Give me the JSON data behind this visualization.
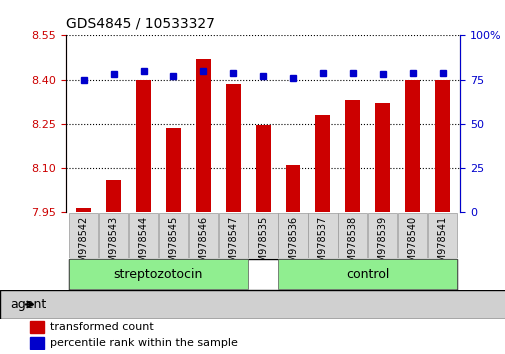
{
  "title": "GDS4845 / 10533327",
  "categories": [
    "GSM978542",
    "GSM978543",
    "GSM978544",
    "GSM978545",
    "GSM978546",
    "GSM978547",
    "GSM978535",
    "GSM978536",
    "GSM978537",
    "GSM978538",
    "GSM978539",
    "GSM978540",
    "GSM978541"
  ],
  "red_values": [
    7.965,
    8.06,
    8.4,
    8.235,
    8.47,
    8.385,
    8.245,
    8.11,
    8.28,
    8.33,
    8.32,
    8.4,
    8.4
  ],
  "blue_values": [
    75,
    78,
    80,
    77,
    80,
    79,
    77,
    76,
    79,
    79,
    78,
    79,
    79
  ],
  "ylim_left": [
    7.95,
    8.55
  ],
  "ylim_right": [
    0,
    100
  ],
  "yticks_left": [
    7.95,
    8.1,
    8.25,
    8.4,
    8.55
  ],
  "yticks_right": [
    0,
    25,
    50,
    75,
    100
  ],
  "bar_color": "#cc0000",
  "square_color": "#0000cc",
  "group_color": "#90EE90",
  "agent_bg": "#d0d0d0",
  "legend_red": "transformed count",
  "legend_blue": "percentile rank within the sample",
  "strep_label": "streptozotocin",
  "ctrl_label": "control",
  "agent_label": "agent",
  "strep_indices": [
    0,
    5
  ],
  "ctrl_indices": [
    6,
    12
  ]
}
